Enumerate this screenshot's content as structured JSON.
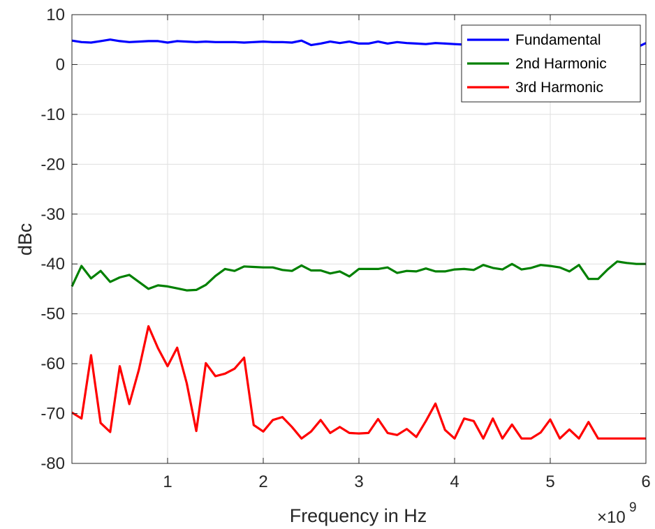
{
  "chart_data": {
    "type": "line",
    "xlabel": "Frequency in Hz",
    "ylabel": "dBc",
    "x_multiplier": "9",
    "xlim": [
      0,
      6
    ],
    "ylim": [
      -80,
      10
    ],
    "xticks": [
      "1",
      "2",
      "3",
      "4",
      "5",
      "6"
    ],
    "yticks": [
      "10",
      "0",
      "-10",
      "-20",
      "-30",
      "-40",
      "-50",
      "-60",
      "-70",
      "-80"
    ],
    "grid": true,
    "legend_position": "top-right",
    "x": [
      0.0,
      0.1,
      0.2,
      0.3,
      0.4,
      0.5,
      0.6,
      0.7,
      0.8,
      0.9,
      1.0,
      1.1,
      1.2,
      1.3,
      1.4,
      1.5,
      1.6,
      1.7,
      1.8,
      1.9,
      2.0,
      2.1,
      2.2,
      2.3,
      2.4,
      2.5,
      2.6,
      2.7,
      2.8,
      2.9,
      3.0,
      3.1,
      3.2,
      3.3,
      3.4,
      3.5,
      3.6,
      3.7,
      3.8,
      3.9,
      4.0,
      4.1,
      4.2,
      4.3,
      4.4,
      4.5,
      4.6,
      4.7,
      4.8,
      4.9,
      5.0,
      5.1,
      5.2,
      5.3,
      5.4,
      5.5,
      5.6,
      5.7,
      5.8,
      5.9,
      6.0
    ],
    "series": [
      {
        "name": "Fundamental",
        "color": "#0000ff",
        "values": [
          4.8,
          4.5,
          4.4,
          4.7,
          5.0,
          4.7,
          4.5,
          4.6,
          4.7,
          4.7,
          4.4,
          4.7,
          4.6,
          4.5,
          4.6,
          4.5,
          4.5,
          4.5,
          4.4,
          4.5,
          4.6,
          4.5,
          4.5,
          4.4,
          4.8,
          3.9,
          4.2,
          4.6,
          4.3,
          4.6,
          4.2,
          4.2,
          4.6,
          4.2,
          4.5,
          4.3,
          4.2,
          4.1,
          4.3,
          4.2,
          4.1,
          4.0,
          4.0,
          4.0,
          4.0,
          4.0,
          4.0,
          4.0,
          4.0,
          4.0,
          4.0,
          4.0,
          4.0,
          4.0,
          4.0,
          4.0,
          4.0,
          4.0,
          4.0,
          3.4,
          4.3
        ]
      },
      {
        "name": "2nd Harmonic",
        "color": "#008000",
        "values": [
          -44.5,
          -40.4,
          -42.9,
          -41.4,
          -43.6,
          -42.7,
          -42.2,
          -43.6,
          -45.0,
          -44.3,
          -44.5,
          -44.9,
          -45.3,
          -45.2,
          -44.2,
          -42.4,
          -41.0,
          -41.4,
          -40.5,
          -40.6,
          -40.7,
          -40.7,
          -41.2,
          -41.4,
          -40.3,
          -41.3,
          -41.3,
          -41.9,
          -41.5,
          -42.5,
          -41.0,
          -41.0,
          -41.0,
          -40.7,
          -41.8,
          -41.4,
          -41.5,
          -40.9,
          -41.5,
          -41.5,
          -41.1,
          -41.0,
          -41.2,
          -40.2,
          -40.8,
          -41.1,
          -40.0,
          -41.1,
          -40.8,
          -40.2,
          -40.4,
          -40.7,
          -41.5,
          -40.2,
          -43.0,
          -43.0,
          -41.1,
          -39.5,
          -39.8,
          -40.0,
          -40.0
        ]
      },
      {
        "name": "3rd Harmonic",
        "color": "#ff0000",
        "values": [
          -69.8,
          -71.0,
          -58.3,
          -71.9,
          -73.7,
          -60.5,
          -68.1,
          -61.2,
          -52.5,
          -56.9,
          -60.5,
          -56.8,
          -63.9,
          -73.5,
          -59.9,
          -62.5,
          -62.0,
          -61.0,
          -58.8,
          -72.3,
          -73.6,
          -71.3,
          -70.7,
          -72.7,
          -75.0,
          -73.6,
          -71.3,
          -73.9,
          -72.7,
          -73.9,
          -74.0,
          -73.9,
          -71.1,
          -73.9,
          -74.3,
          -73.1,
          -74.7,
          -71.5,
          -68.0,
          -73.3,
          -75.0,
          -71.0,
          -71.5,
          -75.0,
          -71.0,
          -75.0,
          -72.2,
          -75.0,
          -75.0,
          -73.8,
          -71.2,
          -75.0,
          -73.2,
          -75.0,
          -71.7,
          -75.0,
          -75.0,
          -75.0,
          -75.0,
          -75.0,
          -75.0
        ]
      }
    ]
  }
}
